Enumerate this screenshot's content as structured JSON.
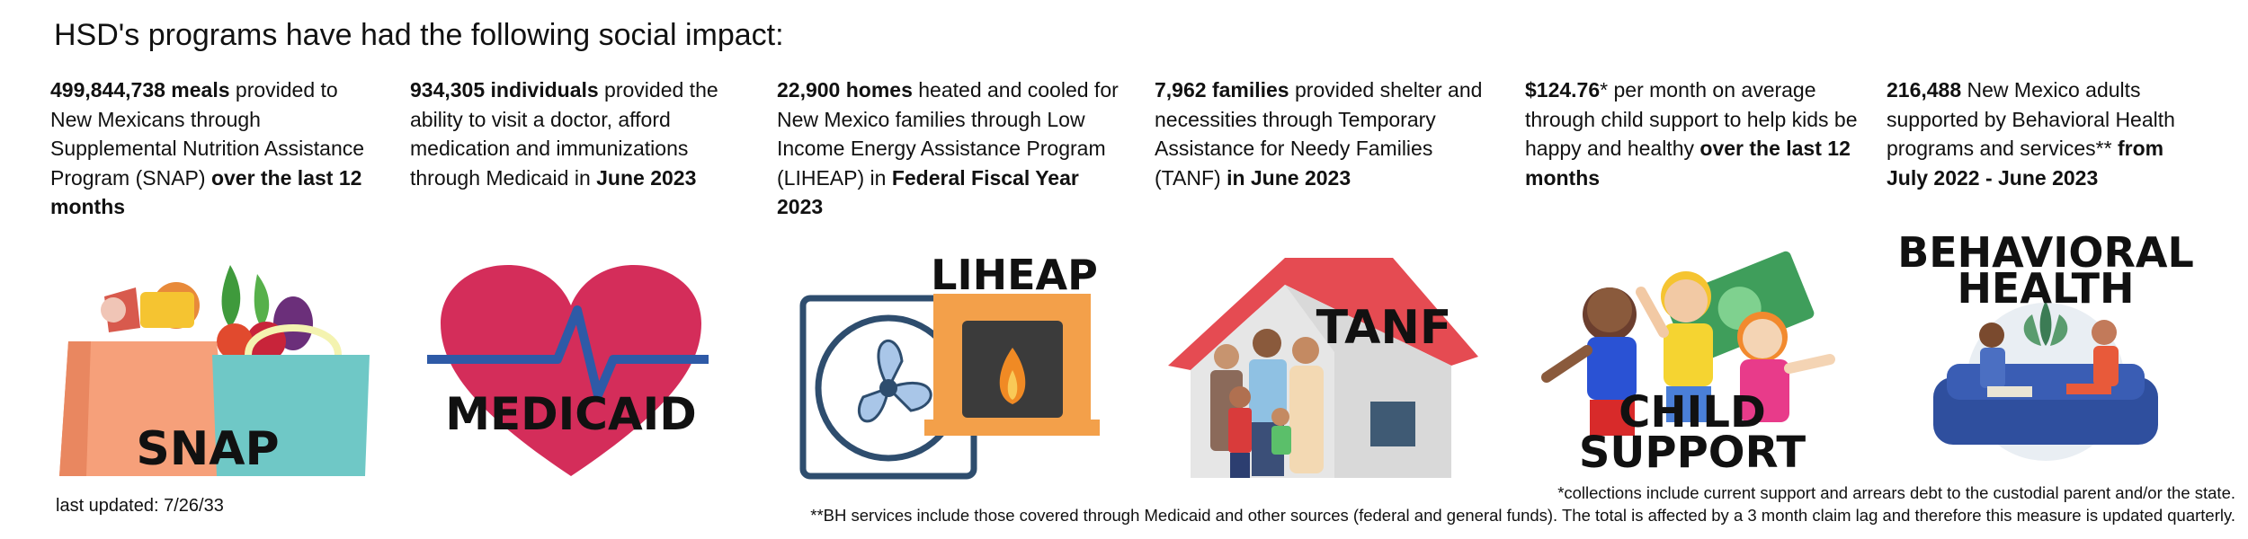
{
  "title": "HSD's programs have had the following social impact:",
  "stats": [
    {
      "strong": "499,844,738 meals",
      "rest": " provided to New Mexicans through Supplemental Nutrition Assistance Program (SNAP) ",
      "strong2": "over the last 12 months",
      "rest2": ""
    },
    {
      "strong": "934,305 individuals",
      "rest": " provided the ability to visit a doctor, afford medication and immunizations through Medicaid in ",
      "strong2": "June 2023",
      "rest2": ""
    },
    {
      "strong": "22,900 homes",
      "rest": " heated and cooled for New Mexico families through Low Income Energy Assistance Program (LIHEAP) in ",
      "strong2": "Federal Fiscal Year 2023",
      "rest2": ""
    },
    {
      "strong": "7,962 families",
      "rest": " provided shelter and necessities through Temporary Assistance for Needy Families (TANF) ",
      "strong2": "in June 2023",
      "rest2": ""
    },
    {
      "strong": "$124.76",
      "rest": "* per month on average through child support to help kids be happy and healthy ",
      "strong2": "over the last 12 months",
      "rest2": ""
    },
    {
      "strong": "216,488",
      "rest": " New Mexico adults supported by Behavioral Health programs and services** ",
      "strong2": "from July 2022 - June 2023",
      "rest2": ""
    }
  ],
  "labels": {
    "snap": "SNAP",
    "medicaid": "MEDICAID",
    "liheap": "LIHEAP",
    "tanf": "TANF",
    "child_line1": "CHILD",
    "child_line2": "SUPPORT",
    "bh_line1": "BEHAVIORAL",
    "bh_line2": "HEALTH"
  },
  "last_updated": "last updated: 7/26/33",
  "footnote1": "*collections include current support and arrears debt to the custodial parent and/or the state.",
  "footnote2": "**BH services include those covered through Medicaid and other sources (federal and general funds). The total is affected by a 3 month claim lag and therefore this measure is updated quarterly.",
  "icons": [
    "grocery-bags-icon",
    "heart-ecg-icon",
    "fan-fireplace-icon",
    "house-family-icon",
    "children-money-icon",
    "therapy-session-icon"
  ],
  "colors": {
    "heart": "#d42d5a",
    "roof": "#e54b52",
    "bag_teal": "#6fc8c6",
    "bag_orange": "#f6a07a",
    "fireplace": "#f3a04a",
    "sofa": "#2f4f9e"
  }
}
